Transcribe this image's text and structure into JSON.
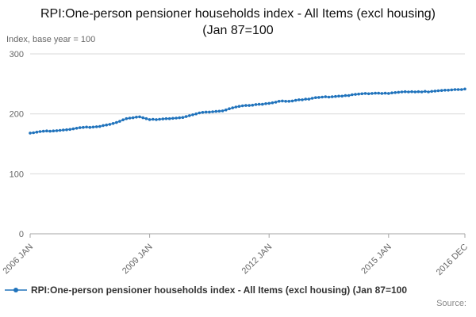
{
  "title": "RPI:One-person pensioner households index - All Items (excl housing) (Jan 87=100",
  "axis_note": "Index, base year = 100",
  "legend_label": "RPI:One-person pensioner households index - All Items (excl housing) (Jan 87=100",
  "source_label": "Source:",
  "colors": {
    "line": "#2073bc",
    "grid": "#d9d9d9",
    "axis": "#a6a6a6",
    "text": "#666666"
  },
  "chart_data": {
    "type": "line",
    "title": "RPI:One-person pensioner households index - All Items (excl housing) (Jan 87=100",
    "xlabel": "",
    "ylabel": "Index, base year = 100",
    "ylim": [
      0,
      300
    ],
    "yticks": [
      0,
      100,
      200,
      300
    ],
    "grid": true,
    "legend_position": "bottom",
    "x_tick_labels": [
      "2006 JAN",
      "2009 JAN",
      "2012 JAN",
      "2015 JAN",
      "2016 DEC"
    ],
    "x_tick_month_index": [
      0,
      36,
      72,
      108,
      131
    ],
    "x_start": "2006 JAN",
    "x_end": "2016 DEC",
    "x_frequency": "monthly",
    "series": [
      {
        "name": "RPI:One-person pensioner households index - All Items (excl housing) (Jan 87=100",
        "values": [
          168,
          168.5,
          169.5,
          170.5,
          171,
          171.5,
          171,
          171.5,
          172,
          172.5,
          173,
          173.5,
          174,
          175,
          176,
          177,
          177.5,
          178,
          177.5,
          178,
          178.5,
          179,
          180.5,
          181.5,
          182.5,
          184,
          185.5,
          187.5,
          190,
          192,
          193,
          193.5,
          194.5,
          195,
          193.5,
          192,
          190.5,
          191,
          190.5,
          191,
          191.5,
          192,
          192,
          192.5,
          193,
          193.5,
          194,
          195.5,
          197,
          198.5,
          200,
          201.5,
          202.5,
          203,
          203,
          203.5,
          204,
          204.5,
          205,
          206.5,
          208.5,
          210,
          211.5,
          212.5,
          213.5,
          214,
          214,
          214.5,
          215.5,
          216,
          216,
          217,
          217.5,
          218.5,
          219.5,
          221,
          221.5,
          221,
          221,
          221.5,
          222.5,
          223.5,
          223.5,
          224.5,
          224.5,
          226,
          227,
          227.5,
          228,
          228.5,
          228,
          228.5,
          229,
          229.5,
          229.5,
          230.5,
          230.5,
          232,
          232.5,
          233,
          233.5,
          234,
          233.5,
          234,
          234.5,
          234.5,
          234,
          234.5,
          234,
          235,
          235.5,
          236,
          236.5,
          237,
          236.5,
          237,
          236.5,
          237,
          236.5,
          237.5,
          236.5,
          237.5,
          238,
          238.5,
          239,
          239.5,
          239.5,
          240,
          240.5,
          240.5,
          240.5,
          241.5
        ]
      }
    ]
  }
}
